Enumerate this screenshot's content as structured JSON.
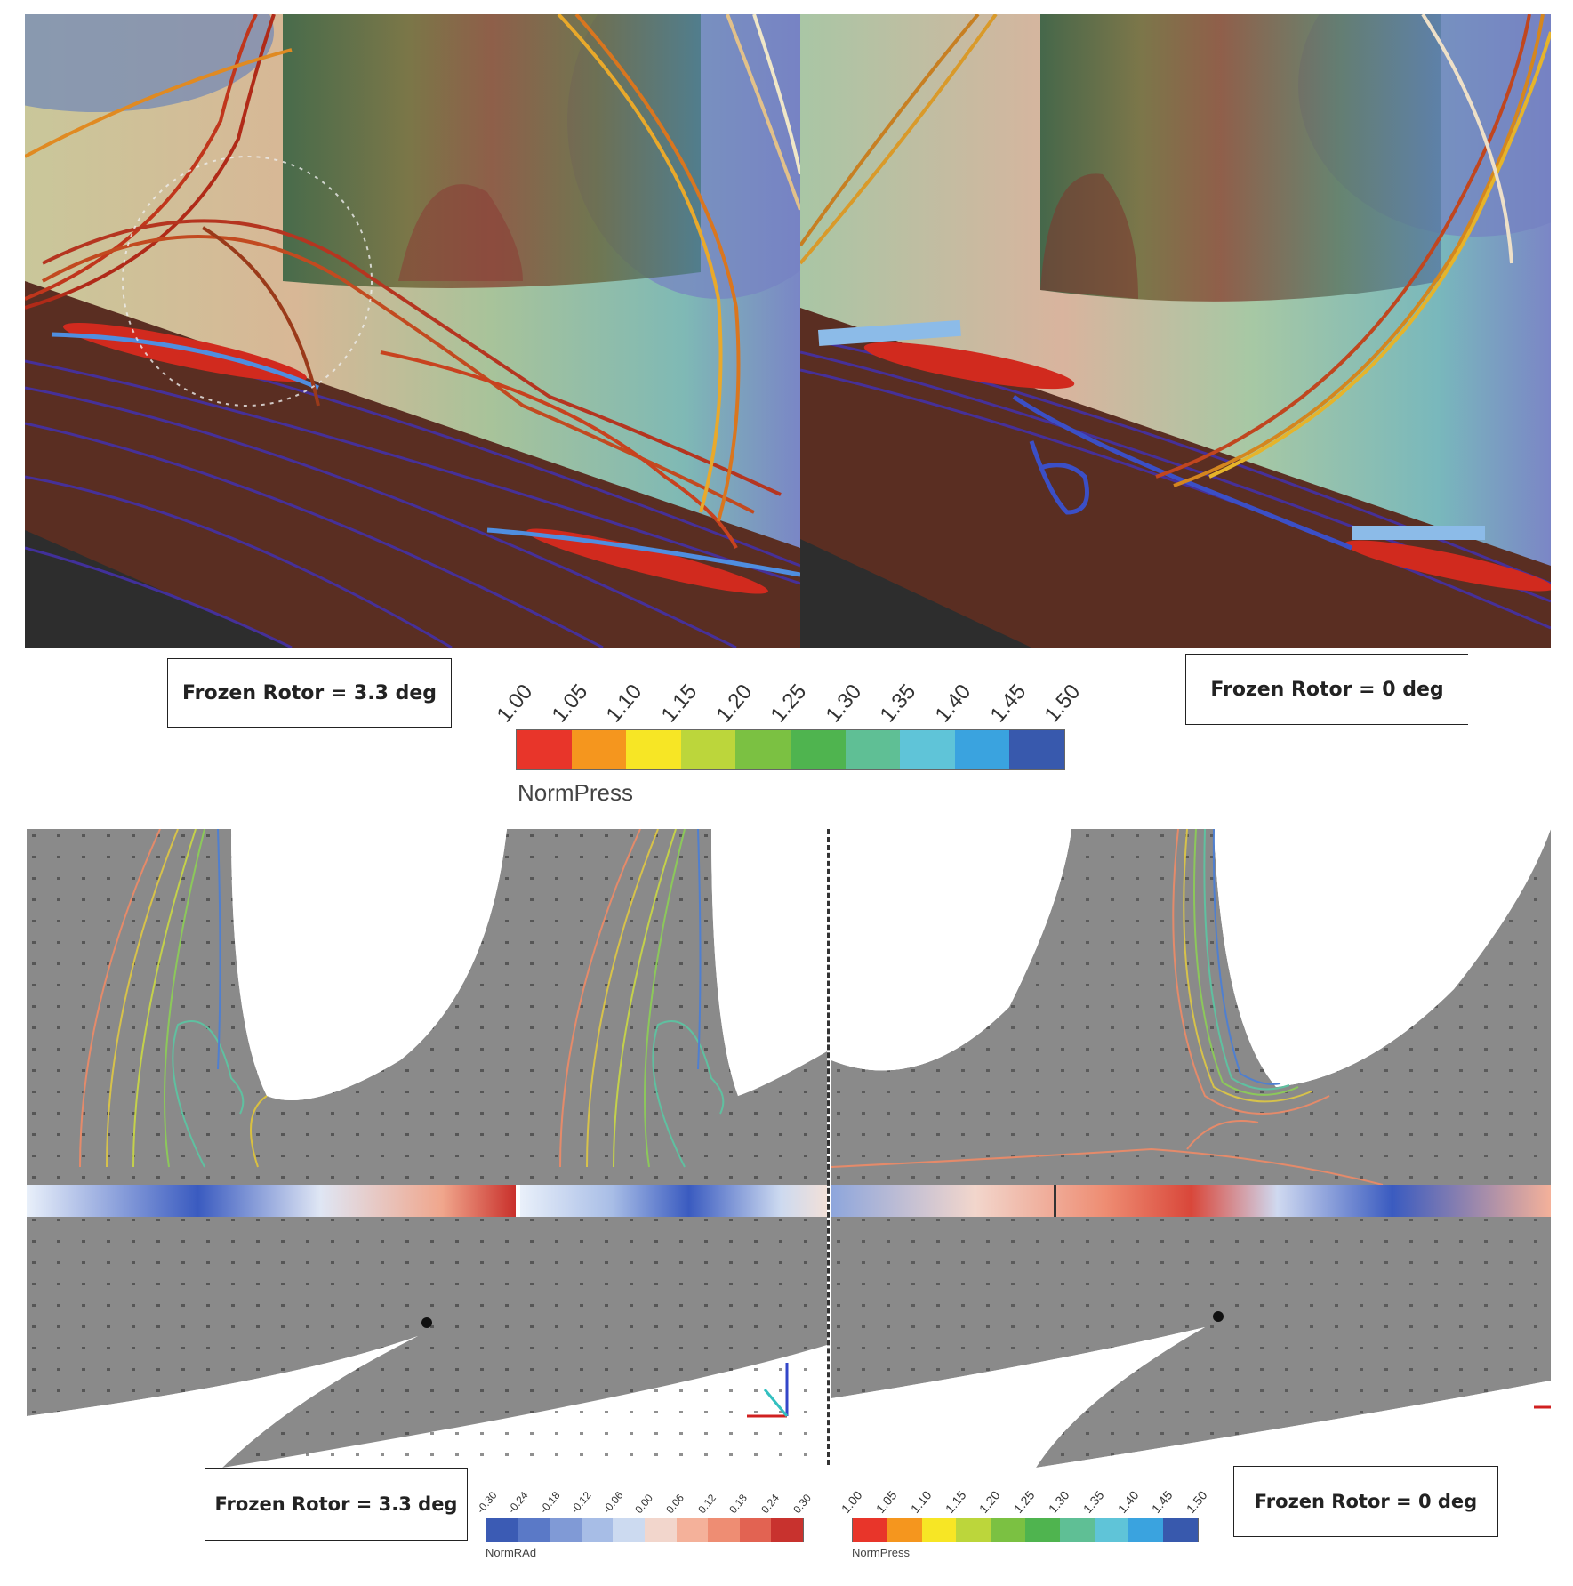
{
  "top_panels": {
    "left_label": "Frozen Rotor = 3.3 deg",
    "right_label": "Frozen Rotor = 0 deg"
  },
  "colorbar_main": {
    "title": "NormPress",
    "ticks": [
      "1.00",
      "1.05",
      "1.10",
      "1.15",
      "1.20",
      "1.25",
      "1.30",
      "1.35",
      "1.40",
      "1.45",
      "1.50"
    ],
    "colors": [
      "#e8352a",
      "#f5961e",
      "#f7e625",
      "#bcd63b",
      "#7bc142",
      "#4fb44f",
      "#5fbf95",
      "#5fc4d8",
      "#3aa3df",
      "#3859ad"
    ]
  },
  "bottom_panels": {
    "left_label": "Frozen Rotor = 3.3 deg",
    "right_label": "Frozen Rotor = 0 deg"
  },
  "colorbar_rad": {
    "title": "NormRAd",
    "ticks": [
      "-0.30",
      "-0.24",
      "-0.18",
      "-0.12",
      "-0.06",
      "0.00",
      "0.06",
      "0.12",
      "0.18",
      "0.24",
      "0.30"
    ],
    "colors": [
      "#3b5bb4",
      "#5a79c7",
      "#809ad6",
      "#a7bde6",
      "#ccdaf0",
      "#f2d6cc",
      "#f4b19a",
      "#ee8d73",
      "#e26352",
      "#c8322e"
    ]
  },
  "colorbar_small": {
    "title": "NormPress",
    "ticks": [
      "1.00",
      "1.05",
      "1.10",
      "1.15",
      "1.20",
      "1.25",
      "1.30",
      "1.35",
      "1.40",
      "1.45",
      "1.50"
    ],
    "colors": [
      "#e8352a",
      "#f5961e",
      "#f7e625",
      "#bcd63b",
      "#7bc142",
      "#4fb44f",
      "#5fbf95",
      "#5fc4d8",
      "#3aa3df",
      "#3859ad"
    ]
  }
}
